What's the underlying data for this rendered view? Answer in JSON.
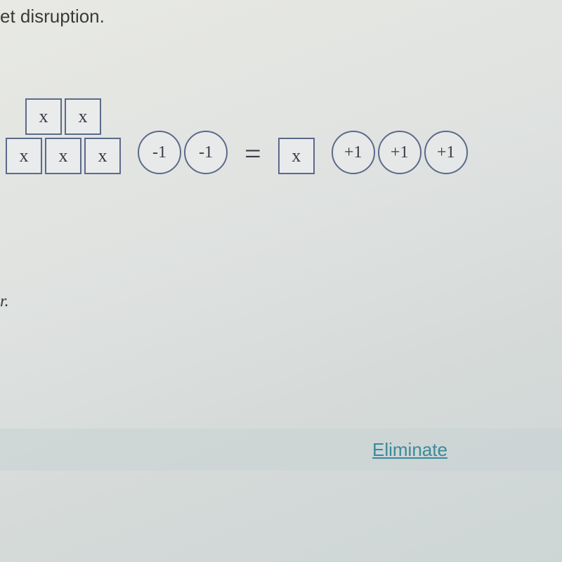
{
  "partial_text": "et disruption.",
  "equation": {
    "left": {
      "tiles_top": [
        "x",
        "x"
      ],
      "tiles_bottom": [
        "x",
        "x",
        "x"
      ],
      "circles": [
        "-1",
        "-1"
      ]
    },
    "equals": "=",
    "right": {
      "tiles": [
        "x"
      ],
      "circles": [
        "+1",
        "+1",
        "+1"
      ]
    }
  },
  "stray_char": "r.",
  "eliminate_label": "Eliminate",
  "colors": {
    "tile_border": "#5a6a8a",
    "circle_border": "#5a6a8a",
    "text": "#3a3a45",
    "link": "#3a8a9a"
  }
}
